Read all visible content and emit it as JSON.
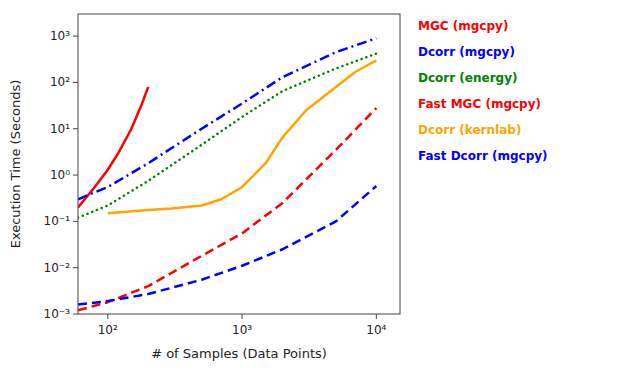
{
  "chart_data": {
    "type": "line",
    "x_label": "# of Samples (Data Points)",
    "y_label": "Execution Time (Seconds)",
    "log": true,
    "grid": false,
    "legend": "right",
    "xlim": [
      60,
      15000
    ],
    "ylim": [
      0.001,
      3000
    ],
    "xticks": [
      {
        "value": 100,
        "label": "10²"
      },
      {
        "value": 1000,
        "label": "10³"
      },
      {
        "value": 10000,
        "label": "10⁴"
      }
    ],
    "yticks": [
      {
        "value": 0.001,
        "label": "10⁻³"
      },
      {
        "value": 0.01,
        "label": "10⁻²"
      },
      {
        "value": 0.1,
        "label": "10⁻¹"
      },
      {
        "value": 1,
        "label": "10⁰"
      },
      {
        "value": 10,
        "label": "10¹"
      },
      {
        "value": 100,
        "label": "10²"
      },
      {
        "value": 1000,
        "label": "10³"
      }
    ],
    "series": [
      {
        "name": "MGC (mgcpy)",
        "color": "red",
        "line_style": "solid",
        "x": [
          60,
          80,
          100,
          120,
          150,
          180,
          200
        ],
        "values": [
          0.2,
          0.55,
          1.3,
          3.0,
          10.0,
          35.0,
          80.0
        ]
      },
      {
        "name": "Dcorr (mgcpy)",
        "color": "blue",
        "line_style": "dashdot",
        "x": [
          60,
          100,
          200,
          500,
          1000,
          2000,
          5000,
          10000
        ],
        "values": [
          0.3,
          0.55,
          1.8,
          10.0,
          35.0,
          130.0,
          450.0,
          900.0
        ]
      },
      {
        "name": "Dcorr (energy)",
        "color": "green",
        "line_style": "dotted",
        "x": [
          60,
          100,
          200,
          500,
          1000,
          2000,
          5000,
          10000
        ],
        "values": [
          0.12,
          0.22,
          0.75,
          4.5,
          18.0,
          65.0,
          200.0,
          420.0
        ]
      },
      {
        "name": "Fast MGC (mgcpy)",
        "color": "red",
        "line_style": "dashed",
        "x": [
          60,
          100,
          200,
          500,
          1000,
          2000,
          5000,
          10000
        ],
        "values": [
          0.0012,
          0.0018,
          0.004,
          0.018,
          0.055,
          0.25,
          3.5,
          28.0
        ]
      },
      {
        "name": "Dcorr (kernlab)",
        "color": "orange",
        "line_style": "solid",
        "x": [
          100,
          200,
          300,
          500,
          700,
          1000,
          1500,
          2000,
          3000,
          5000,
          7000,
          10000
        ],
        "values": [
          0.15,
          0.175,
          0.19,
          0.22,
          0.3,
          0.55,
          1.8,
          6.5,
          25.0,
          80.0,
          170.0,
          300.0
        ]
      },
      {
        "name": "Fast Dcorr (mgcpy)",
        "color": "blue",
        "line_style": "dashed",
        "x": [
          60,
          100,
          200,
          500,
          1000,
          2000,
          5000,
          10000
        ],
        "values": [
          0.0016,
          0.0019,
          0.0027,
          0.0055,
          0.011,
          0.025,
          0.1,
          0.58
        ]
      }
    ]
  }
}
